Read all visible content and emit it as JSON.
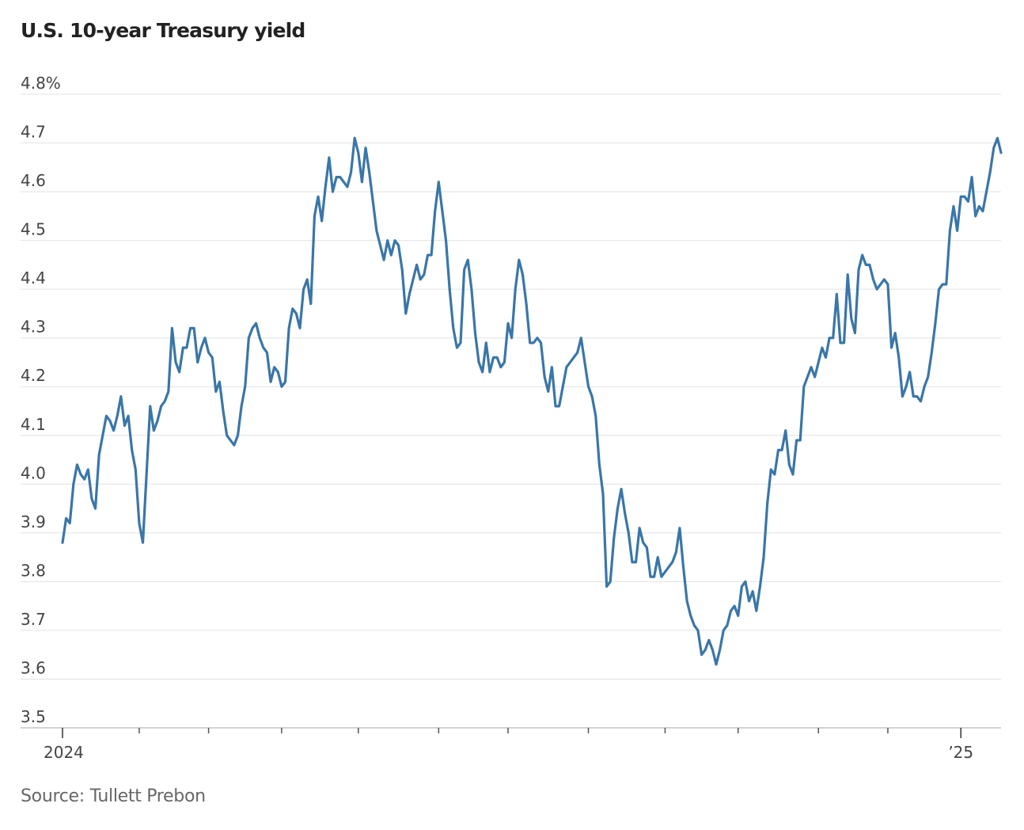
{
  "chart_data": {
    "type": "line",
    "title": "U.S. 10-year Treasury yield",
    "source": "Source: Tullett Prebon",
    "xlabel": "",
    "ylabel": "",
    "ylim": [
      3.5,
      4.8
    ],
    "y_ticks": [
      {
        "value": 4.8,
        "label": "4.8%"
      },
      {
        "value": 4.7,
        "label": "4.7"
      },
      {
        "value": 4.6,
        "label": "4.6"
      },
      {
        "value": 4.5,
        "label": "4.5"
      },
      {
        "value": 4.4,
        "label": "4.4"
      },
      {
        "value": 4.3,
        "label": "4.3"
      },
      {
        "value": 4.2,
        "label": "4.2"
      },
      {
        "value": 4.1,
        "label": "4.1"
      },
      {
        "value": 4.0,
        "label": "4.0"
      },
      {
        "value": 3.9,
        "label": "3.9"
      },
      {
        "value": 3.8,
        "label": "3.8"
      },
      {
        "value": 3.7,
        "label": "3.7"
      },
      {
        "value": 3.6,
        "label": "3.6"
      },
      {
        "value": 3.5,
        "label": "3.5"
      }
    ],
    "x_ticks": [
      {
        "index": 0,
        "label": "2024"
      },
      {
        "index": 21,
        "label": ""
      },
      {
        "index": 40,
        "label": ""
      },
      {
        "index": 60,
        "label": ""
      },
      {
        "index": 81,
        "label": ""
      },
      {
        "index": 103,
        "label": ""
      },
      {
        "index": 122,
        "label": ""
      },
      {
        "index": 144,
        "label": ""
      },
      {
        "index": 165,
        "label": ""
      },
      {
        "index": 185,
        "label": ""
      },
      {
        "index": 207,
        "label": ""
      },
      {
        "index": 226,
        "label": ""
      },
      {
        "index": 246,
        "label": "’25"
      }
    ],
    "grid": true,
    "legend": "none",
    "series": [
      {
        "name": "U.S. 10-year Treasury yield",
        "color": "#3a76a8",
        "values": [
          3.88,
          3.93,
          3.92,
          4.0,
          4.04,
          4.02,
          4.01,
          4.03,
          3.97,
          3.95,
          4.06,
          4.1,
          4.14,
          4.13,
          4.11,
          4.14,
          4.18,
          4.12,
          4.14,
          4.07,
          4.03,
          3.92,
          3.88,
          4.02,
          4.16,
          4.11,
          4.13,
          4.16,
          4.17,
          4.19,
          4.32,
          4.25,
          4.23,
          4.28,
          4.28,
          4.32,
          4.32,
          4.25,
          4.28,
          4.3,
          4.27,
          4.26,
          4.19,
          4.21,
          4.15,
          4.1,
          4.09,
          4.08,
          4.1,
          4.16,
          4.2,
          4.3,
          4.32,
          4.33,
          4.3,
          4.28,
          4.27,
          4.21,
          4.24,
          4.23,
          4.2,
          4.21,
          4.32,
          4.36,
          4.35,
          4.32,
          4.4,
          4.42,
          4.37,
          4.55,
          4.59,
          4.54,
          4.61,
          4.67,
          4.6,
          4.63,
          4.63,
          4.62,
          4.61,
          4.64,
          4.71,
          4.68,
          4.62,
          4.69,
          4.64,
          4.58,
          4.52,
          4.49,
          4.46,
          4.5,
          4.47,
          4.5,
          4.49,
          4.44,
          4.35,
          4.39,
          4.42,
          4.45,
          4.42,
          4.43,
          4.47,
          4.47,
          4.56,
          4.62,
          4.56,
          4.5,
          4.4,
          4.32,
          4.28,
          4.29,
          4.44,
          4.46,
          4.4,
          4.31,
          4.25,
          4.23,
          4.29,
          4.23,
          4.26,
          4.26,
          4.24,
          4.25,
          4.33,
          4.3,
          4.4,
          4.46,
          4.43,
          4.37,
          4.29,
          4.29,
          4.3,
          4.29,
          4.22,
          4.19,
          4.24,
          4.16,
          4.16,
          4.2,
          4.24,
          4.25,
          4.26,
          4.27,
          4.3,
          4.25,
          4.2,
          4.18,
          4.14,
          4.04,
          3.98,
          3.79,
          3.8,
          3.89,
          3.95,
          3.99,
          3.94,
          3.9,
          3.84,
          3.84,
          3.91,
          3.88,
          3.87,
          3.81,
          3.81,
          3.85,
          3.81,
          3.82,
          3.83,
          3.84,
          3.86,
          3.91,
          3.83,
          3.76,
          3.73,
          3.71,
          3.7,
          3.65,
          3.66,
          3.68,
          3.66,
          3.63,
          3.66,
          3.7,
          3.71,
          3.74,
          3.75,
          3.73,
          3.79,
          3.8,
          3.76,
          3.78,
          3.74,
          3.79,
          3.85,
          3.96,
          4.03,
          4.02,
          4.07,
          4.07,
          4.11,
          4.04,
          4.02,
          4.09,
          4.09,
          4.2,
          4.22,
          4.24,
          4.22,
          4.25,
          4.28,
          4.26,
          4.3,
          4.3,
          4.39,
          4.29,
          4.29,
          4.43,
          4.34,
          4.31,
          4.44,
          4.47,
          4.45,
          4.45,
          4.42,
          4.4,
          4.41,
          4.42,
          4.41,
          4.28,
          4.31,
          4.26,
          4.18,
          4.2,
          4.23,
          4.18,
          4.18,
          4.17,
          4.2,
          4.22,
          4.27,
          4.33,
          4.4,
          4.41,
          4.41,
          4.52,
          4.57,
          4.52,
          4.59,
          4.59,
          4.58,
          4.63,
          4.55,
          4.57,
          4.56,
          4.6,
          4.64,
          4.69,
          4.71,
          4.68
        ]
      }
    ]
  }
}
